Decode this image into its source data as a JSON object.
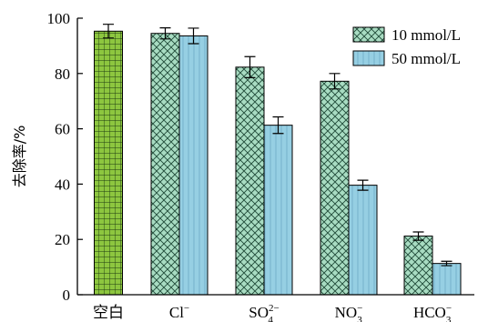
{
  "chart_data": {
    "type": "bar",
    "title": "",
    "xlabel": "",
    "ylabel": "去除率/%",
    "ylim": [
      0,
      100
    ],
    "yticks": [
      0,
      20,
      40,
      60,
      80,
      100
    ],
    "categories": [
      {
        "base": "空白",
        "sub": "",
        "sup": ""
      },
      {
        "base": "Cl",
        "sub": "",
        "sup": "−"
      },
      {
        "base": "SO",
        "sub": "4",
        "sup": "2−"
      },
      {
        "base": "NO",
        "sub": "3",
        "sup": "−"
      },
      {
        "base": "HCO",
        "sub": "3",
        "sup": "−"
      }
    ],
    "blank": {
      "value": 95.3,
      "error": 2.5,
      "color": "#8dc63f",
      "pattern": "grid"
    },
    "series": [
      {
        "name": "10 mmol/L",
        "color": "#a8dcc2",
        "pattern": "crosshatch",
        "values": [
          null,
          94.5,
          82.3,
          77.2,
          21.2
        ],
        "errors": [
          null,
          2.0,
          3.8,
          2.8,
          1.5
        ]
      },
      {
        "name": "50 mmol/L",
        "color": "#96cfe3",
        "pattern": "vertical-lines",
        "values": [
          null,
          93.6,
          61.3,
          39.6,
          11.3
        ],
        "errors": [
          null,
          2.8,
          3.0,
          1.8,
          0.8
        ]
      }
    ],
    "legend_position": "top-right",
    "grid": false
  }
}
